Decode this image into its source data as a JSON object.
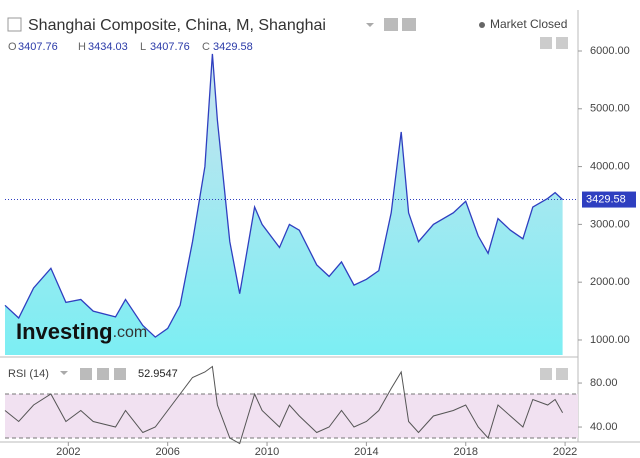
{
  "header": {
    "title": "Shanghai Composite, China, M, Shanghai",
    "status": "Market Closed",
    "ohlc": [
      {
        "label": "O",
        "value": 3407.76
      },
      {
        "label": "H",
        "value": 3434.03
      },
      {
        "label": "L",
        "value": 3407.76
      },
      {
        "label": "C",
        "value": 3429.58
      }
    ],
    "watermark": [
      "Investing",
      ".com"
    ]
  },
  "chart_data": [
    {
      "type": "area",
      "color": "#2f3fc0",
      "x": [
        1999.45,
        2000,
        2000.6,
        2001.3,
        2001.9,
        2002.5,
        2003,
        2003.9,
        2004.3,
        2005,
        2005.5,
        2006,
        2006.5,
        2007,
        2007.5,
        2007.8,
        2008,
        2008.5,
        2008.9,
        2009.5,
        2009.8,
        2010.5,
        2010.9,
        2011.3,
        2012,
        2012.5,
        2013,
        2013.5,
        2014,
        2014.5,
        2015,
        2015.4,
        2015.7,
        2016.1,
        2016.7,
        2017.5,
        2018,
        2018.5,
        2018.9,
        2019.3,
        2019.8,
        2020.3,
        2020.7,
        2021.3,
        2021.6,
        2021.9
      ],
      "values": [
        1600,
        1380,
        1900,
        2240,
        1650,
        1700,
        1500,
        1400,
        1700,
        1250,
        1050,
        1200,
        1600,
        2700,
        4000,
        5950,
        4800,
        2700,
        1800,
        3300,
        3000,
        2600,
        3000,
        2900,
        2300,
        2100,
        2350,
        1950,
        2050,
        2200,
        3200,
        4600,
        3200,
        2700,
        3000,
        3200,
        3400,
        2800,
        2500,
        3100,
        2900,
        2750,
        3300,
        3450,
        3550,
        3429.58
      ],
      "xlim": [
        1999.45,
        2022.52
      ],
      "ylim": [
        740,
        6640
      ],
      "yticks": [
        {
          "value": 1000,
          "label": "1000.00"
        },
        {
          "value": 2000,
          "label": "2000.00"
        },
        {
          "value": 3000,
          "label": "3000.00"
        },
        {
          "value": 4000,
          "label": "4000.00"
        },
        {
          "value": 5000,
          "label": "5000.00"
        },
        {
          "value": 6000,
          "label": "6000.00"
        }
      ]
    },
    {
      "type": "line",
      "title": "RSI (14)",
      "color": "#555555",
      "x": [
        1999.45,
        2000,
        2000.6,
        2001.3,
        2001.9,
        2002.5,
        2003,
        2003.9,
        2004.3,
        2005,
        2005.5,
        2006,
        2006.5,
        2007,
        2007.5,
        2007.8,
        2008,
        2008.5,
        2008.9,
        2009.5,
        2009.8,
        2010.5,
        2010.9,
        2011.3,
        2012,
        2012.5,
        2013,
        2013.5,
        2014,
        2014.5,
        2015,
        2015.4,
        2015.7,
        2016.1,
        2016.7,
        2017.5,
        2018,
        2018.5,
        2018.9,
        2019.3,
        2019.8,
        2020.3,
        2020.7,
        2021.3,
        2021.6,
        2021.9
      ],
      "values": [
        55,
        45,
        60,
        70,
        45,
        55,
        45,
        40,
        55,
        35,
        40,
        55,
        70,
        85,
        90,
        95,
        60,
        30,
        25,
        70,
        55,
        40,
        60,
        50,
        35,
        40,
        55,
        40,
        45,
        55,
        75,
        90,
        45,
        35,
        50,
        55,
        60,
        40,
        30,
        60,
        50,
        40,
        65,
        60,
        65,
        52.9547
      ],
      "levels": [
        70,
        30
      ],
      "xlim": [
        1999.45,
        2022.52
      ],
      "ylim": [
        27.3,
        95.5
      ],
      "xticks": [
        2002,
        2006,
        2010,
        2014,
        2018,
        2022
      ],
      "yticks": [
        {
          "value": 40,
          "label": "40.00"
        },
        {
          "value": 80,
          "label": "80.00"
        }
      ]
    }
  ]
}
